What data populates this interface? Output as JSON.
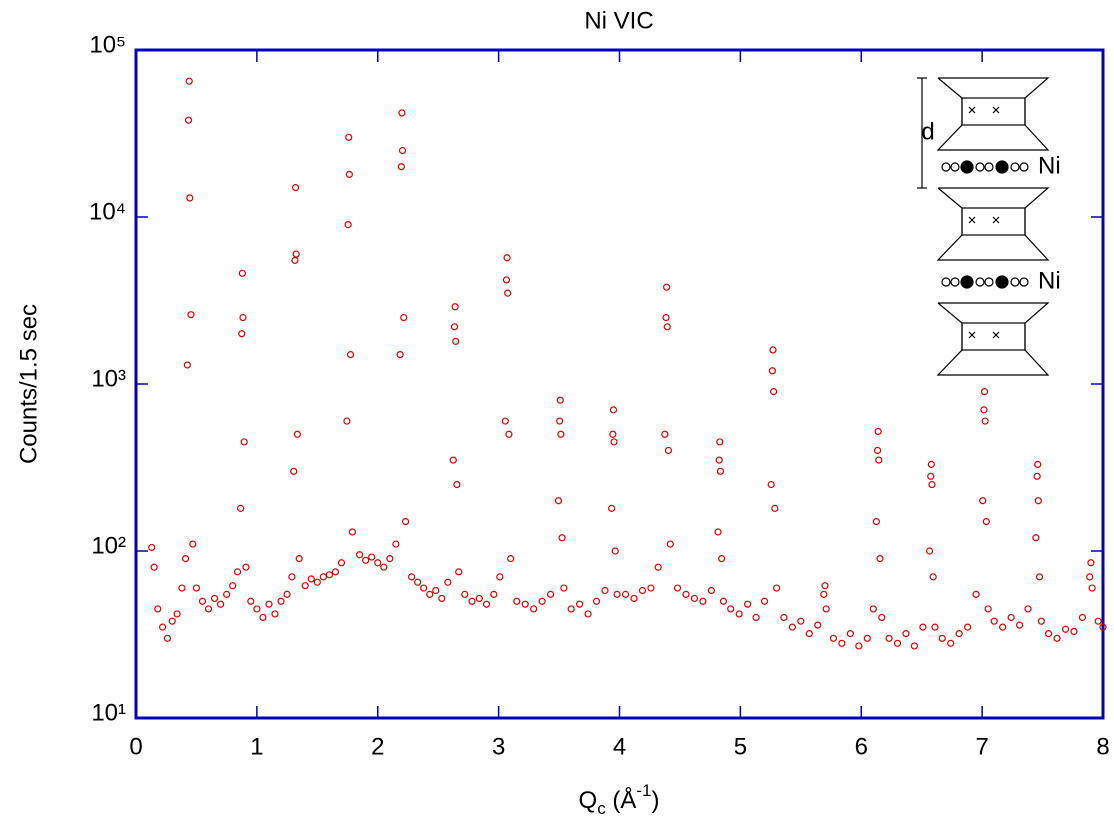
{
  "chart_data": {
    "type": "scatter",
    "title": "Ni VIC",
    "y_label": "Counts/1.5 sec",
    "x_label": [
      "Q",
      "c",
      " (Å",
      "-1",
      ")"
    ],
    "log_y": true,
    "color": "#dd0000",
    "frame_color": "#0000bb",
    "annotations": [
      "d",
      "Ni",
      "Ni"
    ],
    "xlim": [
      0,
      8
    ],
    "xticks": [
      0,
      1,
      2,
      3,
      4,
      5,
      6,
      7,
      8
    ],
    "ylim": [
      10,
      100000
    ],
    "yticks": [
      {
        "value": 10,
        "label": "10¹"
      },
      {
        "value": 100,
        "label": "10²"
      },
      {
        "value": 1000,
        "label": "10³"
      },
      {
        "value": 10000,
        "label": "10⁴"
      },
      {
        "value": 100000,
        "label": "10⁵"
      }
    ],
    "x": [
      0.13,
      0.15,
      0.18,
      0.22,
      0.26,
      0.3,
      0.34,
      0.38,
      0.41,
      0.425,
      0.435,
      0.44,
      0.445,
      0.455,
      0.47,
      0.5,
      0.55,
      0.6,
      0.65,
      0.7,
      0.75,
      0.8,
      0.84,
      0.865,
      0.875,
      0.88,
      0.885,
      0.895,
      0.91,
      0.95,
      1.0,
      1.05,
      1.1,
      1.15,
      1.2,
      1.25,
      1.29,
      1.305,
      1.315,
      1.32,
      1.325,
      1.335,
      1.35,
      1.4,
      1.45,
      1.5,
      1.55,
      1.6,
      1.65,
      1.7,
      1.745,
      1.755,
      1.76,
      1.765,
      1.775,
      1.79,
      1.85,
      1.9,
      1.95,
      2.0,
      2.05,
      2.1,
      2.15,
      2.185,
      2.195,
      2.2,
      2.205,
      2.215,
      2.23,
      2.28,
      2.33,
      2.38,
      2.43,
      2.48,
      2.53,
      2.58,
      2.625,
      2.635,
      2.64,
      2.645,
      2.655,
      2.67,
      2.72,
      2.78,
      2.84,
      2.9,
      2.96,
      3.01,
      3.055,
      3.065,
      3.07,
      3.075,
      3.085,
      3.1,
      3.15,
      3.22,
      3.29,
      3.36,
      3.43,
      3.495,
      3.505,
      3.51,
      3.515,
      3.525,
      3.54,
      3.6,
      3.67,
      3.74,
      3.81,
      3.88,
      3.935,
      3.945,
      3.95,
      3.955,
      3.965,
      3.98,
      4.05,
      4.12,
      4.19,
      4.26,
      4.32,
      4.375,
      4.385,
      4.39,
      4.395,
      4.405,
      4.42,
      4.48,
      4.55,
      4.62,
      4.69,
      4.76,
      4.815,
      4.825,
      4.83,
      4.835,
      4.845,
      4.86,
      4.92,
      4.99,
      5.06,
      5.13,
      5.2,
      5.255,
      5.265,
      5.27,
      5.275,
      5.285,
      5.3,
      5.36,
      5.43,
      5.5,
      5.57,
      5.64,
      5.69,
      5.7,
      5.71,
      5.77,
      5.84,
      5.91,
      5.98,
      6.05,
      6.1,
      6.125,
      6.135,
      6.14,
      6.145,
      6.155,
      6.17,
      6.23,
      6.3,
      6.37,
      6.44,
      6.51,
      6.565,
      6.575,
      6.58,
      6.585,
      6.595,
      6.61,
      6.67,
      6.74,
      6.81,
      6.88,
      6.95,
      7.005,
      7.015,
      7.02,
      7.025,
      7.035,
      7.05,
      7.1,
      7.17,
      7.24,
      7.31,
      7.38,
      7.445,
      7.455,
      7.46,
      7.465,
      7.475,
      7.49,
      7.55,
      7.62,
      7.69,
      7.76,
      7.83,
      7.89,
      7.9,
      7.91,
      7.96,
      8.0
    ],
    "values": [
      105,
      80,
      45,
      35,
      30,
      38,
      42,
      60,
      90,
      1300,
      38000,
      65000,
      13000,
      2600,
      110,
      60,
      50,
      45,
      52,
      48,
      55,
      62,
      75,
      180,
      2000,
      4600,
      2500,
      450,
      80,
      50,
      45,
      40,
      48,
      42,
      50,
      55,
      70,
      300,
      5500,
      15000,
      6000,
      500,
      90,
      62,
      68,
      65,
      70,
      72,
      75,
      85,
      600,
      9000,
      30000,
      18000,
      1500,
      130,
      95,
      88,
      92,
      85,
      80,
      90,
      110,
      1500,
      20000,
      42000,
      25000,
      2500,
      150,
      70,
      65,
      60,
      55,
      58,
      52,
      65,
      350,
      2200,
      2900,
      1800,
      250,
      75,
      55,
      50,
      52,
      48,
      55,
      70,
      600,
      4200,
      5700,
      3500,
      500,
      90,
      50,
      48,
      45,
      50,
      55,
      200,
      600,
      800,
      500,
      120,
      60,
      45,
      48,
      42,
      50,
      58,
      180,
      500,
      700,
      450,
      100,
      55,
      55,
      52,
      58,
      60,
      80,
      500,
      2500,
      3800,
      2200,
      400,
      110,
      60,
      55,
      52,
      50,
      58,
      130,
      350,
      450,
      300,
      90,
      50,
      45,
      42,
      48,
      40,
      50,
      250,
      1200,
      1600,
      900,
      180,
      60,
      40,
      35,
      38,
      32,
      36,
      55,
      62,
      45,
      30,
      28,
      32,
      27,
      30,
      45,
      150,
      400,
      520,
      350,
      90,
      40,
      30,
      28,
      32,
      27,
      35,
      100,
      280,
      330,
      250,
      70,
      35,
      30,
      28,
      32,
      35,
      55,
      200,
      700,
      900,
      600,
      150,
      45,
      38,
      35,
      40,
      36,
      45,
      120,
      280,
      330,
      200,
      70,
      38,
      32,
      30,
      34,
      33,
      40,
      70,
      85,
      60,
      38,
      35
    ]
  }
}
